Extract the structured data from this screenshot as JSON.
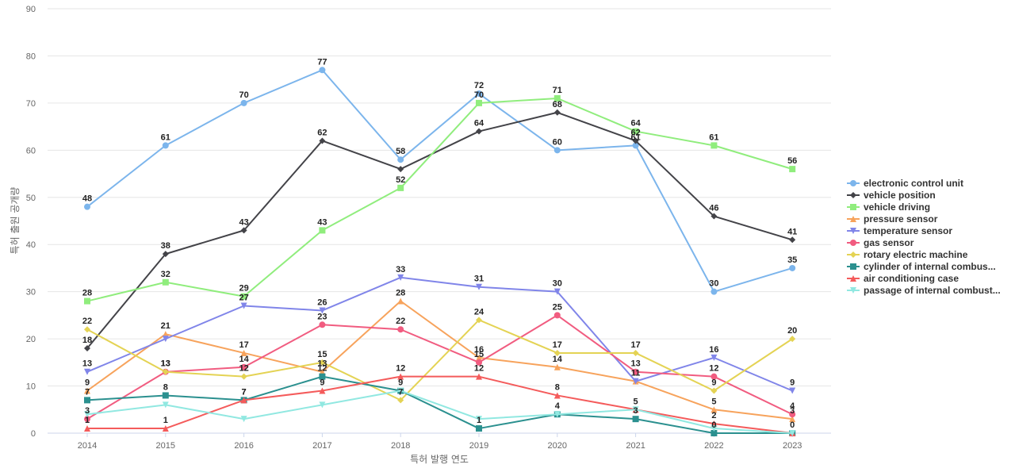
{
  "chart_data": {
    "type": "line",
    "title": "",
    "xlabel": "특허 발행 연도",
    "ylabel": "특허 출원 공개량",
    "x": [
      "2014",
      "2015",
      "2016",
      "2017",
      "2018",
      "2019",
      "2020",
      "2021",
      "2022",
      "2023"
    ],
    "ylim": [
      0,
      90
    ],
    "yticks": [
      0,
      10,
      20,
      30,
      40,
      50,
      60,
      70,
      80,
      90
    ],
    "grid": true,
    "legend_position": "right",
    "series": [
      {
        "name": "electronic control unit",
        "color": "#7cb5ec",
        "marker": "circle",
        "values": [
          48,
          61,
          70,
          77,
          58,
          72,
          60,
          61,
          30,
          35
        ]
      },
      {
        "name": "vehicle position",
        "color": "#434348",
        "marker": "diamond",
        "values": [
          18,
          38,
          43,
          62,
          56,
          64,
          68,
          62,
          46,
          41
        ]
      },
      {
        "name": "vehicle driving",
        "color": "#90ed7d",
        "marker": "square",
        "values": [
          28,
          32,
          29,
          43,
          52,
          70,
          71,
          64,
          61,
          56
        ]
      },
      {
        "name": "pressure sensor",
        "color": "#f7a35c",
        "marker": "triangle",
        "values": [
          9,
          21,
          17,
          13,
          28,
          16,
          14,
          11,
          5,
          3
        ]
      },
      {
        "name": "temperature sensor",
        "color": "#8085e9",
        "marker": "triangle-down",
        "values": [
          13,
          20,
          27,
          26,
          33,
          31,
          30,
          11,
          16,
          9
        ]
      },
      {
        "name": "gas sensor",
        "color": "#f15c80",
        "marker": "circle",
        "values": [
          3,
          13,
          14,
          23,
          22,
          15,
          25,
          13,
          12,
          4
        ]
      },
      {
        "name": "rotary electric machine",
        "color": "#e4d354",
        "marker": "diamond",
        "values": [
          22,
          13,
          12,
          15,
          7,
          24,
          17,
          17,
          9,
          20
        ]
      },
      {
        "name": "cylinder of internal combus...",
        "color": "#2b908f",
        "marker": "square",
        "values": [
          7,
          8,
          7,
          12,
          9,
          1,
          4,
          3,
          0,
          0
        ]
      },
      {
        "name": "air conditioning case",
        "color": "#f45b5b",
        "marker": "triangle",
        "values": [
          1,
          1,
          7,
          9,
          12,
          12,
          8,
          5,
          2,
          0
        ]
      },
      {
        "name": "passage of internal combust...",
        "color": "#91e8e1",
        "marker": "triangle-down",
        "values": [
          4,
          6,
          3,
          6,
          9,
          3,
          4,
          5,
          1,
          0
        ]
      }
    ],
    "data_labels": [
      {
        "series": 0,
        "points": [
          0,
          1,
          2,
          3,
          4,
          5,
          6,
          7,
          8,
          9
        ]
      },
      {
        "series": 1,
        "points": [
          0,
          1,
          2,
          3,
          5,
          6,
          7,
          8,
          9
        ]
      },
      {
        "series": 2,
        "points": [
          0,
          1,
          2,
          3,
          4,
          5,
          6,
          7,
          8,
          9
        ]
      },
      {
        "series": 3,
        "points": [
          0,
          1,
          2,
          3,
          4,
          5,
          6,
          7,
          8,
          9
        ]
      },
      {
        "series": 4,
        "points": [
          0,
          2,
          3,
          4,
          5,
          6,
          8,
          9
        ]
      },
      {
        "series": 5,
        "points": [
          0,
          1,
          2,
          3,
          4,
          5,
          6,
          7,
          8,
          9
        ]
      },
      {
        "series": 6,
        "points": [
          0,
          1,
          2,
          3,
          4,
          5,
          6,
          7,
          8,
          9
        ]
      },
      {
        "series": 7,
        "points": [
          0,
          1,
          2,
          3,
          4,
          5,
          6,
          7,
          8,
          9
        ]
      },
      {
        "series": 8,
        "points": [
          0,
          1,
          2,
          3,
          4,
          5,
          6,
          7,
          8
        ]
      },
      {
        "series": 9,
        "points": []
      }
    ]
  }
}
